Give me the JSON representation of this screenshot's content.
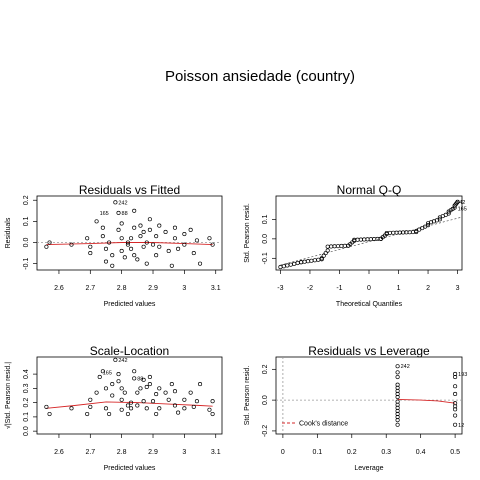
{
  "title": "Poisson ansiedade (country)",
  "chart_data": [
    {
      "type": "scatter",
      "title": "Residuals vs Fitted",
      "xlabel": "Predicted values",
      "ylabel": "Residuals",
      "xlim": [
        2.53,
        3.12
      ],
      "ylim": [
        -0.13,
        0.22
      ],
      "xticks": [
        2.6,
        2.7,
        2.8,
        2.9,
        3.0,
        3.1
      ],
      "yticks": [
        -0.1,
        0.0,
        0.1,
        0.2
      ],
      "ytick_labels": [
        "-0.1",
        "0.0",
        "0.1",
        "0.2"
      ],
      "points": [
        [
          2.56,
          -0.02
        ],
        [
          2.57,
          0.0
        ],
        [
          2.64,
          -0.01
        ],
        [
          2.69,
          0.02
        ],
        [
          2.7,
          -0.02
        ],
        [
          2.7,
          -0.05
        ],
        [
          2.72,
          0.1
        ],
        [
          2.74,
          0.07
        ],
        [
          2.74,
          0.03
        ],
        [
          2.75,
          -0.03
        ],
        [
          2.75,
          -0.09
        ],
        [
          2.76,
          0.0
        ],
        [
          2.77,
          -0.06
        ],
        [
          2.77,
          -0.11
        ],
        [
          2.78,
          0.19
        ],
        [
          2.79,
          0.14
        ],
        [
          2.79,
          0.06
        ],
        [
          2.8,
          0.09
        ],
        [
          2.8,
          0.02
        ],
        [
          2.8,
          -0.04
        ],
        [
          2.81,
          -0.07
        ],
        [
          2.82,
          0.0
        ],
        [
          2.82,
          -0.01
        ],
        [
          2.83,
          0.02
        ],
        [
          2.83,
          -0.03
        ],
        [
          2.84,
          0.15
        ],
        [
          2.84,
          0.07
        ],
        [
          2.84,
          -0.06
        ],
        [
          2.85,
          -0.08
        ],
        [
          2.86,
          0.08
        ],
        [
          2.86,
          0.03
        ],
        [
          2.87,
          0.05
        ],
        [
          2.87,
          -0.02
        ],
        [
          2.88,
          0.0
        ],
        [
          2.88,
          -0.1
        ],
        [
          2.89,
          0.11
        ],
        [
          2.89,
          0.06
        ],
        [
          2.9,
          -0.01
        ],
        [
          2.91,
          0.03
        ],
        [
          2.91,
          -0.06
        ],
        [
          2.92,
          0.08
        ],
        [
          2.92,
          -0.02
        ],
        [
          2.94,
          0.05
        ],
        [
          2.95,
          -0.04
        ],
        [
          2.96,
          -0.11
        ],
        [
          2.97,
          0.07
        ],
        [
          2.97,
          0.02
        ],
        [
          2.98,
          -0.03
        ],
        [
          3.0,
          0.04
        ],
        [
          3.0,
          -0.01
        ],
        [
          3.02,
          0.06
        ],
        [
          3.03,
          -0.05
        ],
        [
          3.04,
          0.01
        ],
        [
          3.05,
          -0.1
        ],
        [
          3.08,
          0.02
        ],
        [
          3.09,
          -0.01
        ]
      ],
      "smooth": [
        [
          2.56,
          -0.01
        ],
        [
          2.7,
          -0.005
        ],
        [
          2.8,
          0.0
        ],
        [
          2.9,
          0.0
        ],
        [
          3.0,
          -0.005
        ],
        [
          3.09,
          -0.01
        ]
      ],
      "zero_line": 0,
      "point_labels": [
        {
          "x": 2.78,
          "y": 0.19,
          "text": "242"
        },
        {
          "x": 2.72,
          "y": 0.14,
          "text": "165"
        },
        {
          "x": 2.79,
          "y": 0.14,
          "text": "88"
        }
      ]
    },
    {
      "type": "scatter",
      "title": "Normal Q-Q",
      "xlabel": "Theoretical Quantiles",
      "ylabel": "Std. Pearson resid.",
      "xlim": [
        -3.15,
        3.15
      ],
      "ylim": [
        -0.16,
        0.22
      ],
      "xticks": [
        -3,
        -2,
        -1,
        0,
        1,
        2,
        3
      ],
      "yticks": [
        -0.1,
        0.0,
        0.1
      ],
      "ytick_labels": [
        "-0.1",
        "0.0",
        "0.1"
      ],
      "quantile_steps": [
        [
          -3.0,
          -2.3,
          -0.145,
          -0.12
        ],
        [
          -2.3,
          -1.6,
          -0.12,
          -0.105
        ],
        [
          -1.6,
          -1.4,
          -0.1,
          -0.06
        ],
        [
          -1.4,
          -0.7,
          -0.04,
          -0.035
        ],
        [
          -0.7,
          -0.5,
          -0.035,
          -0.01
        ],
        [
          -0.5,
          0.4,
          -0.005,
          0.0
        ],
        [
          0.4,
          0.6,
          0.0,
          0.025
        ],
        [
          0.6,
          1.6,
          0.03,
          0.035
        ],
        [
          1.6,
          2.0,
          0.04,
          0.07
        ],
        [
          2.0,
          2.4,
          0.08,
          0.1
        ],
        [
          2.4,
          2.7,
          0.11,
          0.13
        ],
        [
          2.7,
          2.9,
          0.14,
          0.16
        ],
        [
          2.9,
          3.0,
          0.17,
          0.19
        ]
      ],
      "reference_line": {
        "x": [
          -3.0,
          3.1
        ],
        "y": [
          -0.135,
          0.11
        ]
      },
      "point_labels": [
        {
          "x": 2.85,
          "y": 0.19,
          "text": "242"
        },
        {
          "x": 2.9,
          "y": 0.155,
          "text": "165"
        }
      ]
    },
    {
      "type": "scatter",
      "title": "Scale-Location",
      "xlabel": "Predicted values",
      "ylabel": "√|Std. Pearson resid.|",
      "xlim": [
        2.53,
        3.12
      ],
      "ylim": [
        -0.02,
        0.52
      ],
      "xticks": [
        2.6,
        2.7,
        2.8,
        2.9,
        3.0,
        3.1
      ],
      "yticks": [
        0.0,
        0.1,
        0.2,
        0.3,
        0.4
      ],
      "ytick_labels": [
        "0.0",
        "0.1",
        "0.2",
        "0.3",
        "0.4"
      ],
      "points": [
        [
          2.56,
          0.17
        ],
        [
          2.57,
          0.12
        ],
        [
          2.64,
          0.16
        ],
        [
          2.69,
          0.12
        ],
        [
          2.7,
          0.17
        ],
        [
          2.7,
          0.22
        ],
        [
          2.72,
          0.27
        ],
        [
          2.73,
          0.38
        ],
        [
          2.74,
          0.42
        ],
        [
          2.75,
          0.16
        ],
        [
          2.75,
          0.3
        ],
        [
          2.76,
          0.12
        ],
        [
          2.77,
          0.25
        ],
        [
          2.77,
          0.33
        ],
        [
          2.78,
          0.5
        ],
        [
          2.79,
          0.4
        ],
        [
          2.79,
          0.35
        ],
        [
          2.8,
          0.3
        ],
        [
          2.8,
          0.22
        ],
        [
          2.8,
          0.15
        ],
        [
          2.81,
          0.27
        ],
        [
          2.82,
          0.12
        ],
        [
          2.82,
          0.18
        ],
        [
          2.83,
          0.2
        ],
        [
          2.83,
          0.16
        ],
        [
          2.84,
          0.42
        ],
        [
          2.84,
          0.37
        ],
        [
          2.85,
          0.27
        ],
        [
          2.85,
          0.18
        ],
        [
          2.86,
          0.3
        ],
        [
          2.87,
          0.36
        ],
        [
          2.87,
          0.21
        ],
        [
          2.88,
          0.16
        ],
        [
          2.88,
          0.31
        ],
        [
          2.89,
          0.38
        ],
        [
          2.89,
          0.33
        ],
        [
          2.9,
          0.21
        ],
        [
          2.91,
          0.26
        ],
        [
          2.91,
          0.12
        ],
        [
          2.92,
          0.3
        ],
        [
          2.92,
          0.16
        ],
        [
          2.94,
          0.27
        ],
        [
          2.95,
          0.22
        ],
        [
          2.96,
          0.33
        ],
        [
          2.97,
          0.28
        ],
        [
          2.97,
          0.18
        ],
        [
          2.98,
          0.13
        ],
        [
          3.0,
          0.22
        ],
        [
          3.0,
          0.16
        ],
        [
          3.02,
          0.27
        ],
        [
          3.03,
          0.17
        ],
        [
          3.04,
          0.21
        ],
        [
          3.05,
          0.33
        ],
        [
          3.08,
          0.15
        ],
        [
          3.09,
          0.21
        ],
        [
          3.09,
          0.12
        ]
      ],
      "smooth": [
        [
          2.56,
          0.16
        ],
        [
          2.65,
          0.18
        ],
        [
          2.75,
          0.205
        ],
        [
          2.85,
          0.2
        ],
        [
          2.95,
          0.19
        ],
        [
          3.05,
          0.18
        ],
        [
          3.09,
          0.175
        ]
      ],
      "point_labels": [
        {
          "x": 2.78,
          "y": 0.5,
          "text": "242"
        },
        {
          "x": 2.73,
          "y": 0.41,
          "text": "165"
        },
        {
          "x": 2.84,
          "y": 0.37,
          "text": "88"
        }
      ]
    },
    {
      "type": "scatter",
      "title": "Residuals vs Leverage",
      "xlabel": "Leverage",
      "ylabel": "Std. Pearson resid.",
      "xlim": [
        -0.02,
        0.52
      ],
      "ylim": [
        -0.22,
        0.28
      ],
      "xticks": [
        0.0,
        0.1,
        0.2,
        0.3,
        0.4,
        0.5
      ],
      "yticks": [
        -0.2,
        0.0,
        0.2
      ],
      "ytick_labels": [
        "-0.2",
        "0.0",
        "0.2"
      ],
      "points": [
        [
          0.333,
          0.22
        ],
        [
          0.333,
          0.18
        ],
        [
          0.333,
          0.15
        ],
        [
          0.333,
          0.1
        ],
        [
          0.333,
          0.08
        ],
        [
          0.333,
          0.06
        ],
        [
          0.333,
          0.04
        ],
        [
          0.333,
          0.02
        ],
        [
          0.333,
          -0.01
        ],
        [
          0.333,
          -0.03
        ],
        [
          0.333,
          -0.05
        ],
        [
          0.333,
          -0.07
        ],
        [
          0.333,
          -0.09
        ],
        [
          0.333,
          -0.11
        ],
        [
          0.333,
          -0.13
        ],
        [
          0.333,
          -0.16
        ],
        [
          0.5,
          0.17
        ],
        [
          0.5,
          0.15
        ],
        [
          0.5,
          0.09
        ],
        [
          0.5,
          0.04
        ],
        [
          0.5,
          -0.02
        ],
        [
          0.5,
          -0.04
        ],
        [
          0.5,
          -0.06
        ],
        [
          0.5,
          -0.1
        ],
        [
          0.5,
          -0.16
        ]
      ],
      "smooth": [
        [
          0.333,
          0.005
        ],
        [
          0.4,
          0.0
        ],
        [
          0.45,
          -0.005
        ],
        [
          0.5,
          -0.02
        ]
      ],
      "zero_line": 0,
      "leverage_zero_line": 0,
      "legend": {
        "label": "Cook's distance",
        "position": "bottom-left"
      },
      "point_labels": [
        {
          "x": 0.333,
          "y": 0.22,
          "text": "242"
        },
        {
          "x": 0.5,
          "y": 0.17,
          "text": "193"
        },
        {
          "x": 0.5,
          "y": -0.16,
          "text": "12"
        }
      ]
    }
  ]
}
